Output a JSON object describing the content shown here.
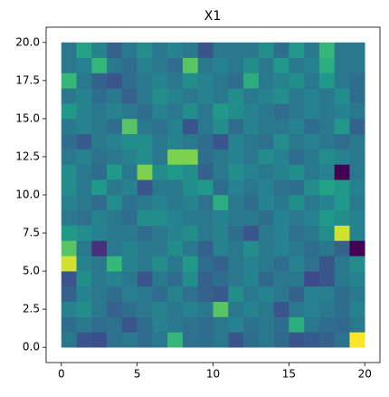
{
  "chart_data": {
    "type": "heatmap",
    "title": "X1",
    "xlim": [
      -1,
      21
    ],
    "ylim": [
      -1,
      21
    ],
    "xticks": [
      0,
      5,
      10,
      15,
      20
    ],
    "yticks": [
      {
        "value": 0,
        "label": "0.0"
      },
      {
        "value": 2.5,
        "label": "2.5"
      },
      {
        "value": 5,
        "label": "5.0"
      },
      {
        "value": 7.5,
        "label": "7.5"
      },
      {
        "value": 10,
        "label": "10.0"
      },
      {
        "value": 12.5,
        "label": "12.5"
      },
      {
        "value": 15,
        "label": "15.0"
      },
      {
        "value": 17.5,
        "label": "17.5"
      },
      {
        "value": 20,
        "label": "20.0"
      }
    ],
    "colormap": "viridis",
    "z": [
      [
        0.45,
        0.3,
        0.28,
        0.42,
        0.45,
        0.4,
        0.45,
        0.75,
        0.42,
        0.4,
        0.45,
        0.3,
        0.4,
        0.45,
        0.38,
        0.3,
        0.32,
        0.35,
        0.42,
        1.0
      ],
      [
        0.4,
        0.45,
        0.4,
        0.42,
        0.3,
        0.4,
        0.5,
        0.45,
        0.42,
        0.4,
        0.45,
        0.5,
        0.42,
        0.45,
        0.4,
        0.7,
        0.45,
        0.4,
        0.38,
        0.45
      ],
      [
        0.5,
        0.55,
        0.45,
        0.35,
        0.4,
        0.45,
        0.5,
        0.45,
        0.5,
        0.45,
        0.8,
        0.45,
        0.5,
        0.45,
        0.3,
        0.45,
        0.5,
        0.45,
        0.4,
        0.5
      ],
      [
        0.35,
        0.5,
        0.45,
        0.4,
        0.48,
        0.45,
        0.4,
        0.5,
        0.42,
        0.35,
        0.32,
        0.55,
        0.45,
        0.5,
        0.45,
        0.35,
        0.5,
        0.48,
        0.4,
        0.45
      ],
      [
        0.3,
        0.55,
        0.45,
        0.5,
        0.45,
        0.3,
        0.45,
        0.4,
        0.55,
        0.35,
        0.4,
        0.45,
        0.5,
        0.38,
        0.45,
        0.45,
        0.25,
        0.3,
        0.45,
        0.5
      ],
      [
        0.95,
        0.5,
        0.45,
        0.75,
        0.5,
        0.45,
        0.55,
        0.45,
        0.6,
        0.4,
        0.35,
        0.45,
        0.5,
        0.45,
        0.4,
        0.5,
        0.42,
        0.3,
        0.45,
        0.55
      ],
      [
        0.8,
        0.45,
        0.15,
        0.45,
        0.5,
        0.45,
        0.45,
        0.55,
        0.45,
        0.35,
        0.5,
        0.45,
        0.55,
        0.45,
        0.5,
        0.45,
        0.4,
        0.45,
        0.35,
        0.0
      ],
      [
        0.6,
        0.55,
        0.5,
        0.45,
        0.45,
        0.4,
        0.45,
        0.5,
        0.55,
        0.45,
        0.5,
        0.4,
        0.3,
        0.45,
        0.5,
        0.42,
        0.45,
        0.55,
        0.95,
        0.5
      ],
      [
        0.45,
        0.42,
        0.5,
        0.45,
        0.4,
        0.55,
        0.55,
        0.5,
        0.45,
        0.45,
        0.5,
        0.45,
        0.45,
        0.4,
        0.5,
        0.45,
        0.5,
        0.6,
        0.55,
        0.5
      ],
      [
        0.5,
        0.45,
        0.4,
        0.55,
        0.42,
        0.45,
        0.5,
        0.45,
        0.5,
        0.42,
        0.7,
        0.45,
        0.4,
        0.5,
        0.45,
        0.55,
        0.45,
        0.5,
        0.6,
        0.45
      ],
      [
        0.55,
        0.45,
        0.6,
        0.45,
        0.5,
        0.3,
        0.45,
        0.45,
        0.55,
        0.6,
        0.4,
        0.5,
        0.45,
        0.5,
        0.42,
        0.4,
        0.55,
        0.65,
        0.6,
        0.5
      ],
      [
        0.55,
        0.45,
        0.4,
        0.6,
        0.45,
        0.85,
        0.55,
        0.6,
        0.55,
        0.35,
        0.45,
        0.55,
        0.5,
        0.45,
        0.5,
        0.55,
        0.45,
        0.5,
        0.0,
        0.45
      ],
      [
        0.45,
        0.5,
        0.42,
        0.45,
        0.5,
        0.55,
        0.45,
        0.85,
        0.85,
        0.4,
        0.45,
        0.5,
        0.45,
        0.55,
        0.5,
        0.4,
        0.45,
        0.55,
        0.5,
        0.45
      ],
      [
        0.4,
        0.32,
        0.45,
        0.5,
        0.55,
        0.55,
        0.45,
        0.5,
        0.45,
        0.4,
        0.3,
        0.5,
        0.45,
        0.42,
        0.55,
        0.45,
        0.5,
        0.45,
        0.4,
        0.45
      ],
      [
        0.45,
        0.5,
        0.45,
        0.4,
        0.8,
        0.45,
        0.42,
        0.5,
        0.3,
        0.45,
        0.55,
        0.4,
        0.5,
        0.45,
        0.45,
        0.5,
        0.4,
        0.45,
        0.6,
        0.35
      ],
      [
        0.6,
        0.5,
        0.45,
        0.5,
        0.45,
        0.4,
        0.5,
        0.45,
        0.55,
        0.45,
        0.6,
        0.55,
        0.5,
        0.45,
        0.4,
        0.45,
        0.5,
        0.45,
        0.5,
        0.45
      ],
      [
        0.45,
        0.5,
        0.4,
        0.45,
        0.35,
        0.45,
        0.55,
        0.5,
        0.45,
        0.5,
        0.45,
        0.55,
        0.45,
        0.5,
        0.55,
        0.45,
        0.5,
        0.45,
        0.55,
        0.4
      ],
      [
        0.75,
        0.45,
        0.35,
        0.3,
        0.4,
        0.45,
        0.5,
        0.45,
        0.55,
        0.5,
        0.45,
        0.4,
        0.7,
        0.45,
        0.5,
        0.55,
        0.45,
        0.6,
        0.45,
        0.4
      ],
      [
        0.45,
        0.5,
        0.75,
        0.45,
        0.4,
        0.5,
        0.45,
        0.4,
        0.8,
        0.45,
        0.5,
        0.45,
        0.55,
        0.45,
        0.6,
        0.45,
        0.5,
        0.7,
        0.45,
        0.45
      ],
      [
        0.45,
        0.65,
        0.5,
        0.35,
        0.45,
        0.55,
        0.45,
        0.5,
        0.45,
        0.3,
        0.45,
        0.45,
        0.45,
        0.55,
        0.4,
        0.6,
        0.45,
        0.75,
        0.45,
        0.45
      ]
    ]
  }
}
